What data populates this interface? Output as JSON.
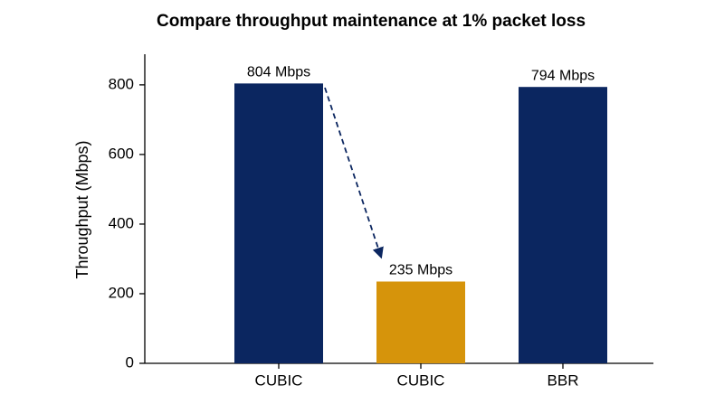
{
  "chart_data": {
    "type": "bar",
    "title": "Compare throughput maintenance at 1% packet loss",
    "y_label": "Throughput (Mbps)",
    "categories": [
      "CUBIC",
      "CUBIC",
      "BBR"
    ],
    "values": [
      804,
      235,
      794
    ],
    "value_labels": [
      "804 Mbps",
      "235 Mbps",
      "794 Mbps"
    ],
    "colors": [
      "#0b2660",
      "#d6940b",
      "#0b2660"
    ],
    "ylim": [
      0,
      888
    ],
    "yticks": [
      0,
      200,
      400,
      600,
      800
    ],
    "grid": false
  }
}
